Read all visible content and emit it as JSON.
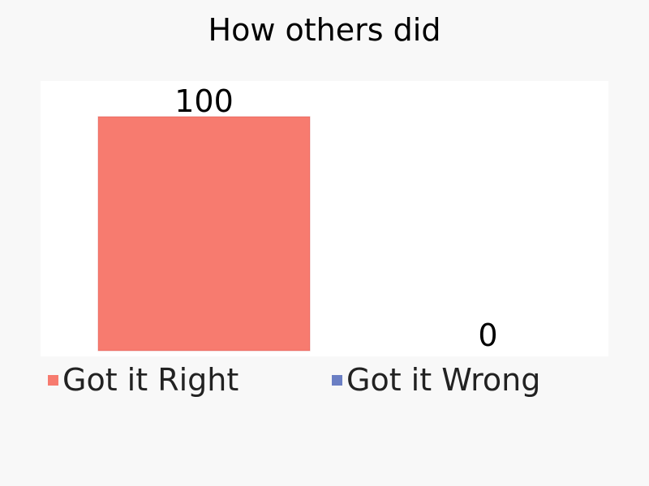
{
  "chart_data": {
    "type": "bar",
    "title": "How others did",
    "categories": [
      "Got it Right",
      "Got it Wrong"
    ],
    "values": [
      100,
      0
    ],
    "colors": [
      "#f77b6f",
      "#6b7fc4"
    ],
    "ylim": [
      0,
      100
    ],
    "grid": false,
    "legend": "bottom",
    "background": "#f8f8f8",
    "plot_background": "#ffffff"
  }
}
